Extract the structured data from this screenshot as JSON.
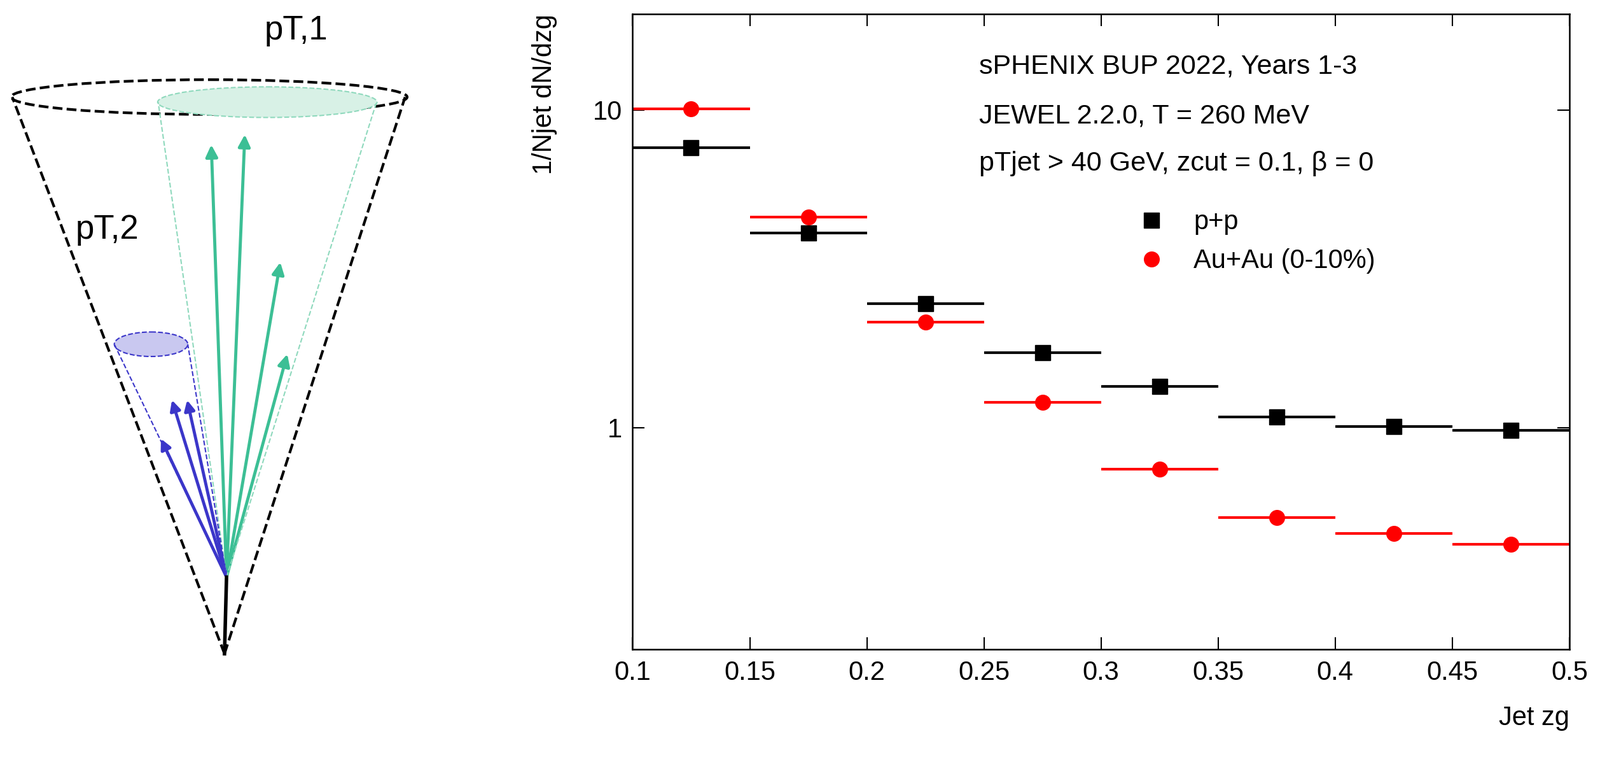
{
  "chart_data": {
    "type": "histogram",
    "annotations": [
      "sPHENIX BUP 2022, Years 1-3",
      "JEWEL 2.2.0, T = 260 MeV",
      "pTjet > 40 GeV, zcut = 0.1, β = 0"
    ],
    "x_label": "Jet zg",
    "y_label": "1/Njet dN/dzg",
    "bins": [
      0.1,
      0.15,
      0.2,
      0.25,
      0.3,
      0.35,
      0.4,
      0.45,
      0.5
    ],
    "series": [
      {
        "name": "p+p",
        "color": "#000000",
        "marker": "square",
        "values": [
          7.6,
          4.1,
          2.45,
          1.72,
          1.35,
          1.08,
          1.01,
          0.98
        ]
      },
      {
        "name": "Au+Au (0-10%)",
        "color": "#ff0000",
        "marker": "circle",
        "values": [
          10.1,
          4.6,
          2.15,
          1.2,
          0.74,
          0.52,
          0.465,
          0.43
        ]
      }
    ],
    "log": "y",
    "xlim": [
      0.1,
      0.5
    ],
    "xticks": [
      0.1,
      0.15,
      0.2,
      0.25,
      0.3,
      0.35,
      0.4,
      0.45,
      0.5
    ],
    "ylim": [
      0.2,
      20
    ],
    "yticks": [
      1,
      10
    ],
    "legend": "upper left"
  },
  "diagram": {
    "labels": [
      "pT,1",
      "pT,2"
    ]
  }
}
